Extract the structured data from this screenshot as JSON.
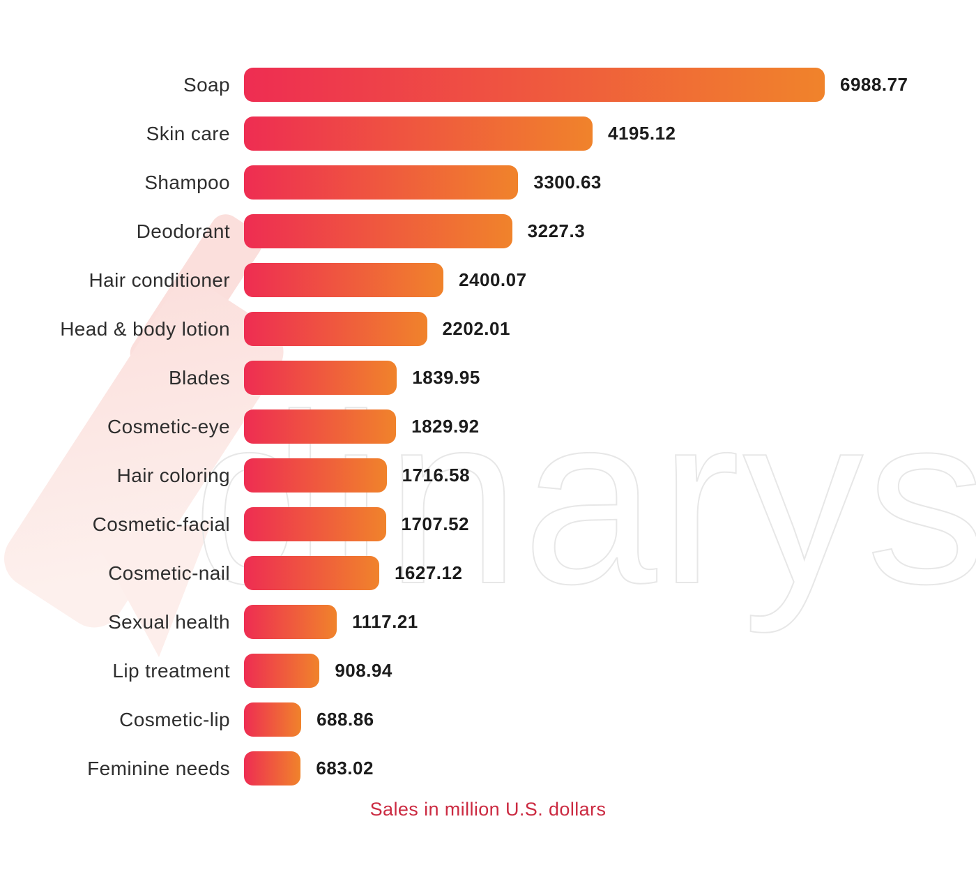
{
  "caption": "Sales in million U.S. dollars",
  "watermark": {
    "text": "dinarys",
    "stroke_color": "#e7e7e7",
    "logo_color_top": "#fbdfdc",
    "logo_color_bottom": "#fdf0ed"
  },
  "colors": {
    "bar_gradient_start": "#ee2d52",
    "bar_gradient_end": "#f0832b",
    "category_text": "#2e2e2e",
    "value_text": "#1b1b1b",
    "caption_text": "#cb2a41",
    "background": "#ffffff"
  },
  "chart_data": {
    "type": "bar",
    "orientation": "horizontal",
    "title": "",
    "xlabel": "Sales in million U.S. dollars",
    "ylabel": "",
    "xlim": [
      0,
      6988.77
    ],
    "grid": false,
    "legend": false,
    "value_labels": true,
    "categories": [
      "Soap",
      "Skin care",
      "Shampoo",
      "Deodorant",
      "Hair conditioner",
      "Head & body lotion",
      "Blades",
      "Cosmetic-eye",
      "Hair coloring",
      "Cosmetic-facial",
      "Cosmetic-nail",
      "Sexual health",
      "Lip treatment",
      "Cosmetic-lip",
      "Feminine needs"
    ],
    "values": [
      6988.77,
      4195.12,
      3300.63,
      3227.3,
      2400.07,
      2202.01,
      1839.95,
      1829.92,
      1716.58,
      1707.52,
      1627.12,
      1117.21,
      908.94,
      688.86,
      683.02
    ],
    "values_display": [
      "6988.77",
      "4195.12",
      "3300.63",
      "3227.3",
      "2400.07",
      "2202.01",
      "1839.95",
      "1829.92",
      "1716.58",
      "1707.52",
      "1627.12",
      "1117.21",
      "908.94",
      "688.86",
      "683.02"
    ]
  }
}
